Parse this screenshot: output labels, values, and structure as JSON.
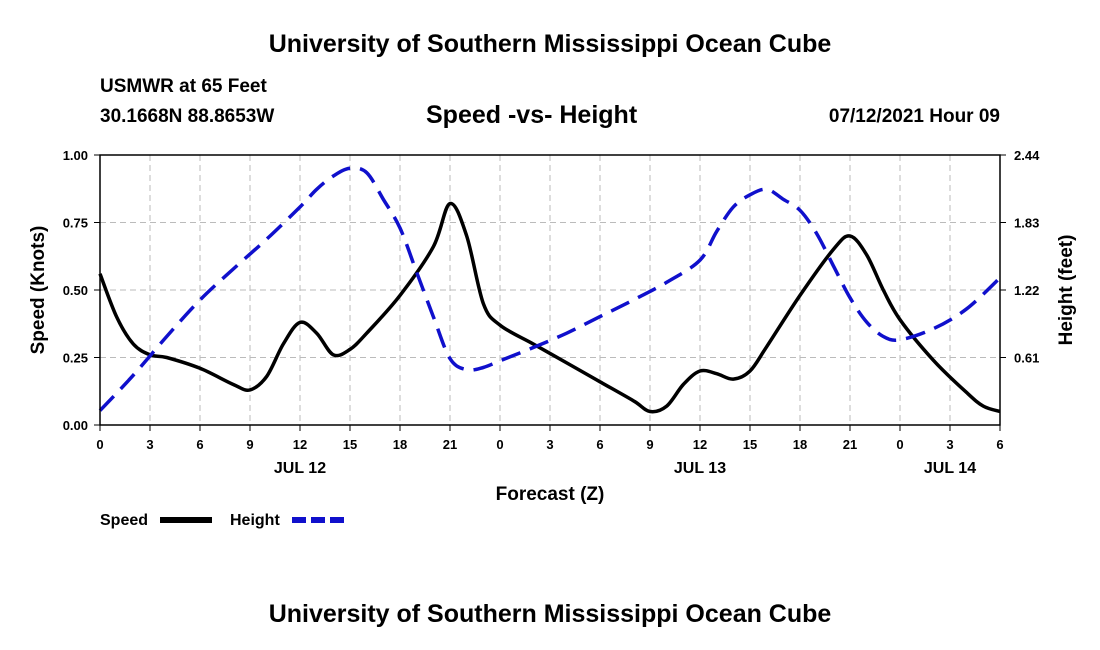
{
  "page": {
    "title_top": "University of Southern Mississippi Ocean Cube",
    "title_bottom": "University of Southern Mississippi Ocean Cube",
    "station_name": "USMWR at 65 Feet",
    "station_coords": "30.1668N  88.8653W",
    "datetime": "07/12/2021 Hour 09"
  },
  "colors": {
    "speed": "#000000",
    "height": "#1010cc",
    "grid": "#bbbbbb"
  },
  "chart_data": {
    "type": "line",
    "title": "Speed -vs- Height",
    "xlabel": "Forecast (Z)",
    "ylabel_left": "Speed (Knots)",
    "ylabel_right": "Height (feet)",
    "x_range_hours": [
      0,
      54
    ],
    "x_ticks": [
      {
        "hour": 0,
        "label": "0"
      },
      {
        "hour": 3,
        "label": "3"
      },
      {
        "hour": 6,
        "label": "6"
      },
      {
        "hour": 9,
        "label": "9"
      },
      {
        "hour": 12,
        "label": "12"
      },
      {
        "hour": 15,
        "label": "15"
      },
      {
        "hour": 18,
        "label": "18"
      },
      {
        "hour": 21,
        "label": "21"
      },
      {
        "hour": 24,
        "label": "0"
      },
      {
        "hour": 27,
        "label": "3"
      },
      {
        "hour": 30,
        "label": "6"
      },
      {
        "hour": 33,
        "label": "9"
      },
      {
        "hour": 36,
        "label": "12"
      },
      {
        "hour": 39,
        "label": "15"
      },
      {
        "hour": 42,
        "label": "18"
      },
      {
        "hour": 45,
        "label": "21"
      },
      {
        "hour": 48,
        "label": "0"
      },
      {
        "hour": 51,
        "label": "3"
      },
      {
        "hour": 54,
        "label": "6"
      }
    ],
    "date_labels": [
      {
        "hour": 12,
        "label": "JUL 12"
      },
      {
        "hour": 36,
        "label": "JUL 13"
      },
      {
        "hour": 51,
        "label": "JUL 14"
      }
    ],
    "y_left": {
      "range": [
        0,
        1
      ],
      "ticks": [
        0,
        0.25,
        0.5,
        0.75,
        1
      ],
      "tick_labels": [
        "0.00",
        "0.25",
        "0.50",
        "0.75",
        "1.00"
      ]
    },
    "y_right": {
      "range": [
        0.0,
        2.44
      ],
      "ticks": [
        0.61,
        1.22,
        1.83,
        2.44
      ],
      "tick_labels": [
        "0.61",
        "1.22",
        "1.83",
        "2.44"
      ]
    },
    "series": [
      {
        "name": "Speed",
        "axis": "left",
        "style": "solid",
        "x": [
          0,
          1,
          2,
          3,
          4,
          6,
          8,
          9,
          10,
          11,
          12,
          13,
          14,
          15,
          16,
          18,
          20,
          21,
          22,
          23,
          24,
          26,
          28,
          30,
          32,
          33,
          34,
          35,
          36,
          37,
          38,
          39,
          40,
          42,
          44,
          45,
          46,
          47,
          48,
          50,
          52,
          53,
          54
        ],
        "y": [
          0.56,
          0.4,
          0.3,
          0.26,
          0.25,
          0.21,
          0.15,
          0.13,
          0.18,
          0.3,
          0.38,
          0.34,
          0.26,
          0.28,
          0.34,
          0.48,
          0.66,
          0.82,
          0.7,
          0.45,
          0.37,
          0.3,
          0.23,
          0.16,
          0.09,
          0.05,
          0.07,
          0.15,
          0.2,
          0.19,
          0.17,
          0.2,
          0.29,
          0.48,
          0.65,
          0.7,
          0.63,
          0.5,
          0.39,
          0.24,
          0.12,
          0.07,
          0.05
        ]
      },
      {
        "name": "Height",
        "axis": "right",
        "style": "dashed",
        "x": [
          0,
          2,
          4,
          6,
          8,
          10,
          12,
          13,
          14,
          15,
          16,
          17,
          18,
          19,
          20,
          21,
          22,
          23,
          24,
          26,
          28,
          30,
          32,
          34,
          36,
          37,
          38,
          39,
          40,
          41,
          42,
          43,
          44,
          45,
          46,
          47,
          48,
          50,
          52,
          54
        ],
        "y": [
          0.13,
          0.45,
          0.8,
          1.13,
          1.41,
          1.68,
          1.97,
          2.13,
          2.25,
          2.32,
          2.28,
          2.04,
          1.78,
          1.38,
          0.98,
          0.6,
          0.5,
          0.52,
          0.58,
          0.7,
          0.83,
          0.98,
          1.13,
          1.29,
          1.49,
          1.75,
          1.97,
          2.08,
          2.13,
          2.04,
          1.94,
          1.73,
          1.44,
          1.15,
          0.93,
          0.8,
          0.77,
          0.87,
          1.05,
          1.33
        ]
      }
    ],
    "legend": [
      {
        "name": "Speed",
        "style": "solid"
      },
      {
        "name": "Height",
        "style": "dashed"
      }
    ]
  }
}
